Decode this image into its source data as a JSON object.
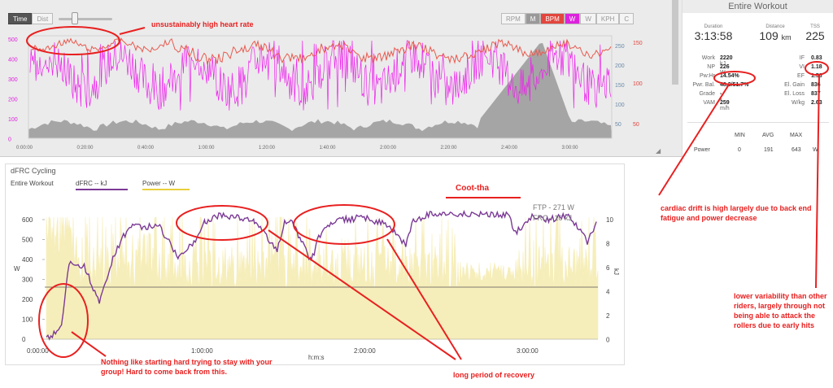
{
  "top_panel": {
    "toggles": [
      {
        "label": "Time",
        "active": true
      },
      {
        "label": "Dist",
        "active": false
      }
    ],
    "metric_buttons": [
      {
        "label": "RPM",
        "state": "off"
      },
      {
        "label": "M",
        "state": "gray"
      },
      {
        "label": "BPM",
        "state": "red"
      },
      {
        "label": "W",
        "state": "magenta"
      },
      {
        "label": "W",
        "state": "off"
      },
      {
        "label": "KPH",
        "state": "off"
      },
      {
        "label": "C",
        "state": "off"
      }
    ],
    "left_axis_ticks": [
      "500",
      "400",
      "300",
      "200",
      "100",
      "0"
    ],
    "mid_axis_ticks": [
      "250",
      "200",
      "150",
      "100",
      "50"
    ],
    "right_axis_ticks": [
      "150",
      "100",
      "50"
    ],
    "time_ticks": [
      "0:00:00",
      "0:20:00",
      "0:40:00",
      "1:00:00",
      "1:20:00",
      "1:40:00",
      "2:00:00",
      "2:20:00",
      "2:40:00",
      "3:00:00"
    ],
    "colors": {
      "power": "#ee22ee",
      "hr": "#e85a4f",
      "elevation": "#777777"
    }
  },
  "summary": {
    "title": "Entire Workout",
    "duration_label": "Duration",
    "duration": "3:13:58",
    "distance_label": "Distance",
    "distance": "109",
    "distance_unit": "km",
    "tss_label": "TSS",
    "tss": "225",
    "left_stats": [
      {
        "label": "Work",
        "value": "2220",
        "unit": "kJ"
      },
      {
        "label": "NP",
        "value": "226",
        "unit": "W"
      },
      {
        "label": "Pw:Hr",
        "value": "14.54%",
        "unit": ""
      },
      {
        "label": "Pwr. Bal.",
        "value": "48.3/51.7%",
        "unit": ""
      },
      {
        "label": "Grade",
        "value": "--",
        "unit": ""
      },
      {
        "label": "VAM",
        "value": "259",
        "unit": "m/h"
      }
    ],
    "right_stats": [
      {
        "label": "IF",
        "value": "0.83"
      },
      {
        "label": "VI",
        "value": "1.18"
      },
      {
        "label": "EF",
        "value": "1.56"
      },
      {
        "label": "El. Gain",
        "value": "836"
      },
      {
        "label": "El. Loss",
        "value": "837"
      },
      {
        "label": "W/kg",
        "value": "2.63"
      }
    ],
    "table": {
      "headers": [
        "MIN",
        "AVG",
        "MAX"
      ],
      "row_label": "Power",
      "min": "0",
      "avg": "191",
      "max": "643",
      "unit": "W"
    }
  },
  "dfrc": {
    "title": "dFRC Cycling",
    "scope": "Entire Workout",
    "legend_dfrc": "dFRC  -- kJ",
    "legend_power": "Power  -- W",
    "ftp_label": "FTP - 271 W",
    "frc_label": "FRC - 10 kJ",
    "y_left_ticks": [
      "600",
      "500",
      "400",
      "300",
      "200",
      "100",
      "0"
    ],
    "y_right_ticks": [
      "10",
      "8",
      "6",
      "4",
      "2",
      "0"
    ],
    "y_left_title": "W",
    "y_right_title": "kJ",
    "x_ticks": [
      "0:00:00",
      "1:00:00",
      "2:00:00",
      "3:00:00"
    ],
    "x_title": "h:m:s",
    "colors": {
      "dfrc": "#7b3a96",
      "power": "#e8cf3c",
      "ftp_line": "#555555"
    }
  },
  "annotations": {
    "high_hr": "unsustainably high heart rate",
    "coot_tha": "Coot-tha",
    "cardiac_drift": "cardiac drift is high largely due to back end fatigue and power decrease",
    "variability": "lower variability than other riders, largely through not being able to attack the rollers due to early hits",
    "start_hard": "Nothing like starting hard trying to stay with your group! Hard to come back from this.",
    "recovery": "long period of recovery"
  }
}
